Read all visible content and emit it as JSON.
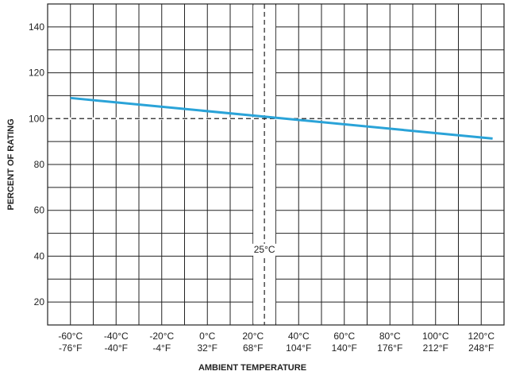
{
  "chart_data": {
    "type": "line",
    "xlabel": "AMBIENT TEMPERATURE",
    "ylabel": "PERCENT OF RATING",
    "xlim": [
      -70,
      130
    ],
    "ylim": [
      10,
      150
    ],
    "grid": true,
    "y_ticks": [
      20,
      40,
      60,
      80,
      100,
      120,
      140
    ],
    "x_ticks": [
      {
        "c": -60,
        "label_c": "-60°C",
        "label_f": "-76°F"
      },
      {
        "c": -40,
        "label_c": "-40°C",
        "label_f": "-40°F"
      },
      {
        "c": -20,
        "label_c": "-20°C",
        "label_f": "-4°F"
      },
      {
        "c": 0,
        "label_c": "0°C",
        "label_f": "32°F"
      },
      {
        "c": 20,
        "label_c": "20°C",
        "label_f": "68°F"
      },
      {
        "c": 40,
        "label_c": "40°C",
        "label_f": "104°F"
      },
      {
        "c": 60,
        "label_c": "60°C",
        "label_f": "140°F"
      },
      {
        "c": 80,
        "label_c": "80°C",
        "label_f": "176°F"
      },
      {
        "c": 100,
        "label_c": "100°C",
        "label_f": "212°F"
      },
      {
        "c": 120,
        "label_c": "120°C",
        "label_f": "248°F"
      }
    ],
    "series": [
      {
        "color": "#2aa3d8",
        "x": [
          -60,
          125
        ],
        "y": [
          109,
          91.3
        ]
      }
    ],
    "reference_lines": {
      "vertical": {
        "x": 25,
        "label": "25°C"
      },
      "horizontal": {
        "y": 100
      }
    }
  }
}
